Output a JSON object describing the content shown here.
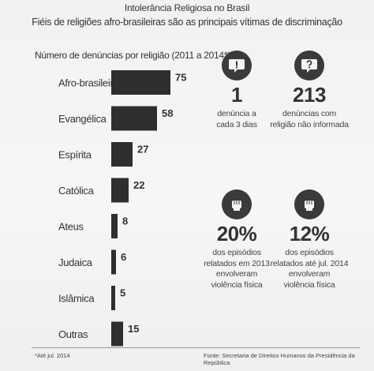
{
  "header": {
    "title": "Intolerância Religiosa no Brasil",
    "subtitle": "Fiéis de religiões afro-brasileiras são as principais vítimas de discriminação"
  },
  "chart_data": {
    "type": "bar",
    "orientation": "horizontal",
    "title": "Número de denúncias por religião (2011 a 2014*)",
    "categories": [
      "Afro-brasileira",
      "Evangélica",
      "Espírita",
      "Católica",
      "Ateus",
      "Judaica",
      "Islâmica",
      "Outras"
    ],
    "values": [
      75,
      58,
      27,
      22,
      8,
      6,
      5,
      15
    ],
    "xlim": [
      0,
      75
    ],
    "grid": false,
    "legend": "none",
    "bar_color": "#2e2e2e"
  },
  "stats": [
    {
      "icon": "speech-bubble-exclamation-icon",
      "big": "1",
      "lines": [
        "denúncia a",
        "cada 3 dias"
      ]
    },
    {
      "icon": "speech-bubble-question-icon",
      "big": "213",
      "lines": [
        "denúncias com",
        "religião não informada"
      ]
    },
    {
      "icon": "fist-icon",
      "big": "20%",
      "lines": [
        "dos episódios",
        "relatados em 2013",
        "envolveram",
        "violência física"
      ]
    },
    {
      "icon": "fist-icon",
      "big": "12%",
      "lines": [
        "dos episódios",
        "relatados até jul. 2014",
        "envolveram",
        "violência física"
      ]
    }
  ],
  "footer": {
    "footnote": "*Até jul. 2014",
    "source": "Fonte: Secretaria de Direitos Humanos da Presidência da República"
  },
  "colors": {
    "ink": "#2e2e2e",
    "icon_circle": "#3a3a3a",
    "background": "#f4f4f2"
  }
}
